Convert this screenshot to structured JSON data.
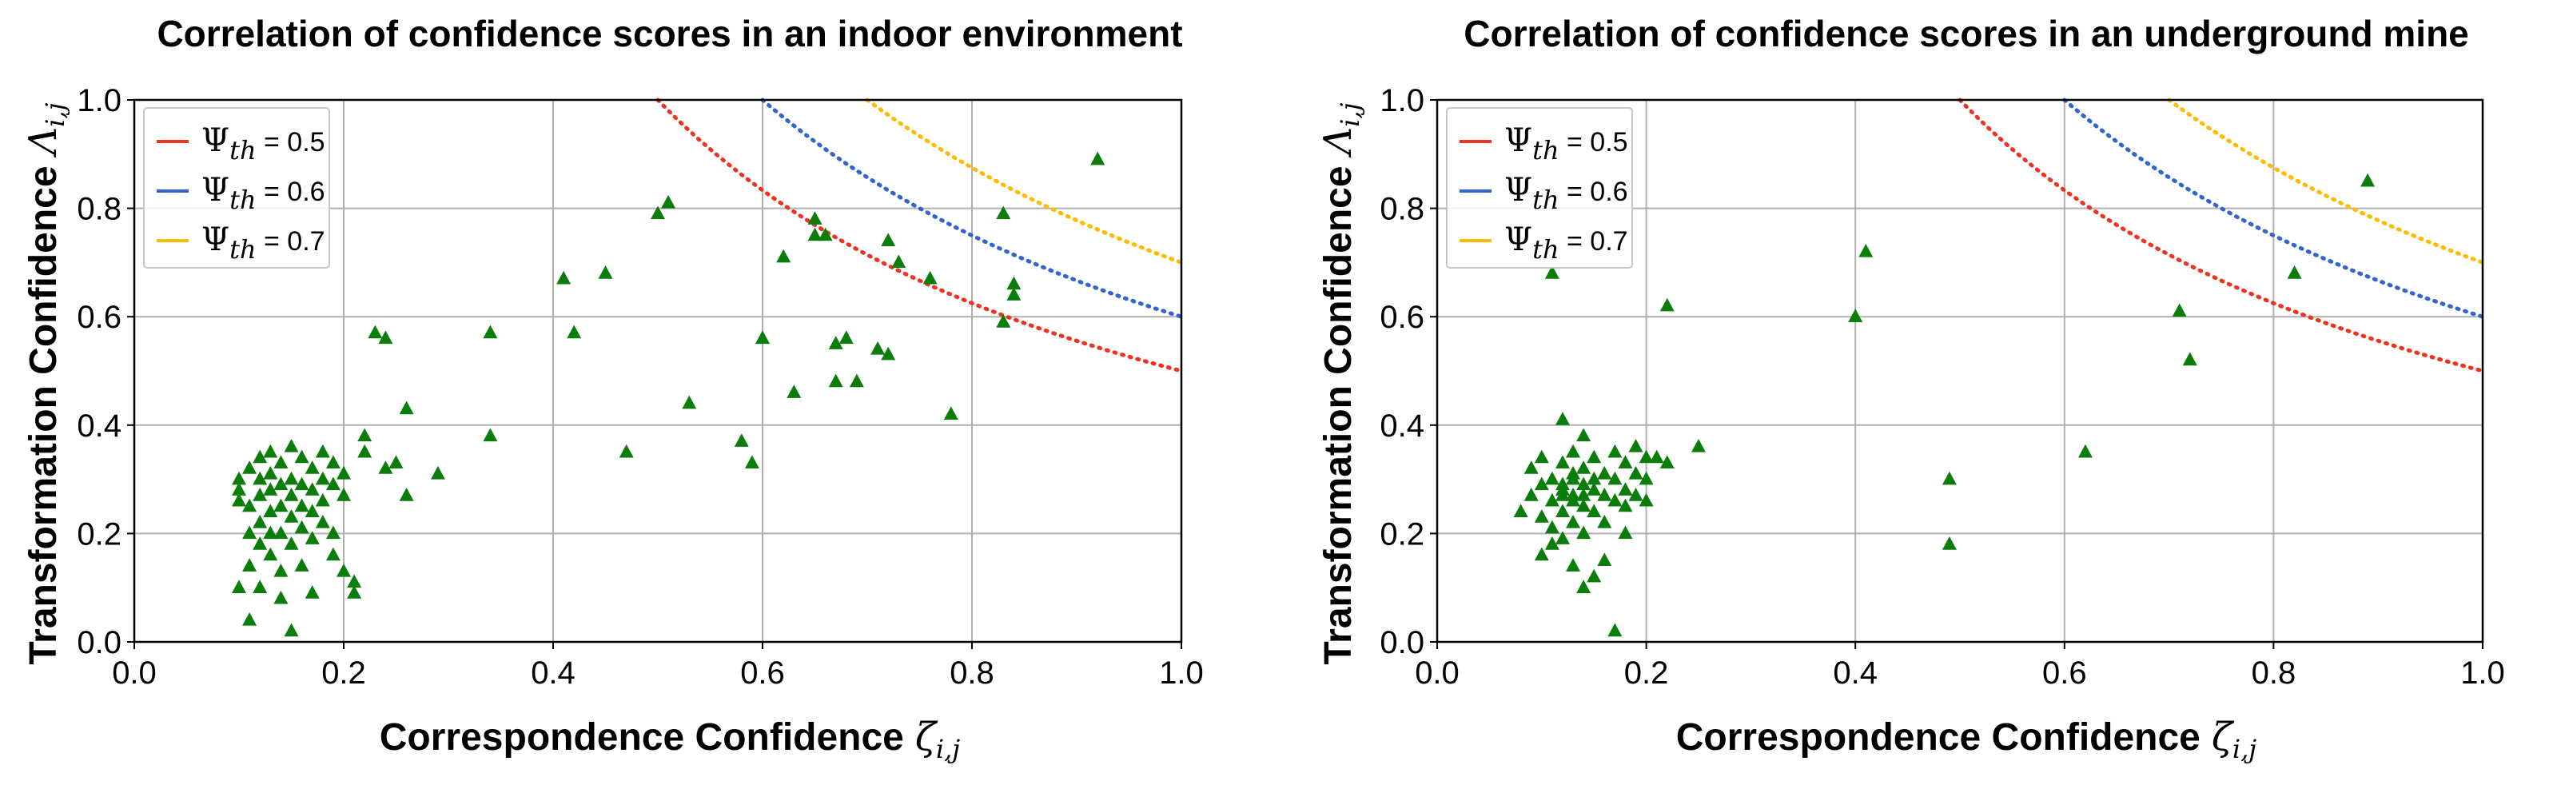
{
  "chart_data": [
    {
      "type": "scatter",
      "title": "Correlation of confidence scores in an indoor environment",
      "xlabel": "Correspondence  Confidence",
      "xlabel_symbol": "ζ",
      "xlabel_sub": "i,j",
      "ylabel": "Transformation Confidence",
      "ylabel_symbol": "Λ",
      "ylabel_sub": "i,j",
      "xlim": [
        0.0,
        1.0
      ],
      "ylim": [
        0.0,
        1.0
      ],
      "xticks": [
        "0.0",
        "0.2",
        "0.4",
        "0.6",
        "0.8",
        "1.0"
      ],
      "yticks": [
        "0.0",
        "0.2",
        "0.4",
        "0.6",
        "0.8",
        "1.0"
      ],
      "grid": true,
      "legend_position": "top-left",
      "legend": [
        {
          "symbol": "Ψ",
          "sub": "th",
          "value": " = 0.5",
          "threshold": 0.5,
          "color": "#ee3322"
        },
        {
          "symbol": "Ψ",
          "sub": "th",
          "value": " = 0.6",
          "threshold": 0.6,
          "color": "#3366cc"
        },
        {
          "symbol": "Ψ",
          "sub": "th",
          "value": " = 0.7",
          "threshold": 0.7,
          "color": "#ffbb00"
        }
      ],
      "marker_color": "#0a7d0a",
      "points": [
        [
          0.1,
          0.26
        ],
        [
          0.1,
          0.3
        ],
        [
          0.1,
          0.28
        ],
        [
          0.11,
          0.32
        ],
        [
          0.11,
          0.25
        ],
        [
          0.11,
          0.2
        ],
        [
          0.12,
          0.34
        ],
        [
          0.12,
          0.3
        ],
        [
          0.12,
          0.27
        ],
        [
          0.12,
          0.22
        ],
        [
          0.12,
          0.18
        ],
        [
          0.13,
          0.35
        ],
        [
          0.13,
          0.31
        ],
        [
          0.13,
          0.28
        ],
        [
          0.13,
          0.24
        ],
        [
          0.13,
          0.16
        ],
        [
          0.14,
          0.33
        ],
        [
          0.14,
          0.29
        ],
        [
          0.14,
          0.25
        ],
        [
          0.14,
          0.2
        ],
        [
          0.14,
          0.13
        ],
        [
          0.15,
          0.36
        ],
        [
          0.15,
          0.3
        ],
        [
          0.15,
          0.27
        ],
        [
          0.15,
          0.23
        ],
        [
          0.15,
          0.18
        ],
        [
          0.16,
          0.34
        ],
        [
          0.16,
          0.29
        ],
        [
          0.16,
          0.25
        ],
        [
          0.16,
          0.21
        ],
        [
          0.17,
          0.32
        ],
        [
          0.17,
          0.28
        ],
        [
          0.17,
          0.24
        ],
        [
          0.17,
          0.19
        ],
        [
          0.18,
          0.35
        ],
        [
          0.18,
          0.3
        ],
        [
          0.18,
          0.26
        ],
        [
          0.18,
          0.22
        ],
        [
          0.19,
          0.33
        ],
        [
          0.19,
          0.29
        ],
        [
          0.19,
          0.2
        ],
        [
          0.2,
          0.31
        ],
        [
          0.2,
          0.27
        ],
        [
          0.11,
          0.14
        ],
        [
          0.12,
          0.1
        ],
        [
          0.14,
          0.08
        ],
        [
          0.1,
          0.1
        ],
        [
          0.11,
          0.04
        ],
        [
          0.15,
          0.02
        ],
        [
          0.13,
          0.2
        ],
        [
          0.16,
          0.14
        ],
        [
          0.17,
          0.09
        ],
        [
          0.19,
          0.16
        ],
        [
          0.2,
          0.13
        ],
        [
          0.21,
          0.11
        ],
        [
          0.21,
          0.09
        ],
        [
          0.22,
          0.38
        ],
        [
          0.22,
          0.35
        ],
        [
          0.23,
          0.57
        ],
        [
          0.24,
          0.56
        ],
        [
          0.24,
          0.32
        ],
        [
          0.25,
          0.33
        ],
        [
          0.26,
          0.43
        ],
        [
          0.26,
          0.27
        ],
        [
          0.29,
          0.31
        ],
        [
          0.34,
          0.57
        ],
        [
          0.34,
          0.38
        ],
        [
          0.41,
          0.67
        ],
        [
          0.42,
          0.57
        ],
        [
          0.45,
          0.68
        ],
        [
          0.47,
          0.35
        ],
        [
          0.5,
          0.79
        ],
        [
          0.51,
          0.81
        ],
        [
          0.53,
          0.44
        ],
        [
          0.58,
          0.37
        ],
        [
          0.59,
          0.33
        ],
        [
          0.6,
          0.56
        ],
        [
          0.6,
          0.56
        ],
        [
          0.62,
          0.71
        ],
        [
          0.63,
          0.46
        ],
        [
          0.65,
          0.78
        ],
        [
          0.65,
          0.75
        ],
        [
          0.66,
          0.75
        ],
        [
          0.67,
          0.55
        ],
        [
          0.67,
          0.48
        ],
        [
          0.68,
          0.56
        ],
        [
          0.69,
          0.48
        ],
        [
          0.71,
          0.54
        ],
        [
          0.72,
          0.53
        ],
        [
          0.72,
          0.74
        ],
        [
          0.73,
          0.7
        ],
        [
          0.76,
          0.67
        ],
        [
          0.78,
          0.42
        ],
        [
          0.83,
          0.79
        ],
        [
          0.83,
          0.59
        ],
        [
          0.84,
          0.66
        ],
        [
          0.84,
          0.64
        ],
        [
          0.92,
          0.89
        ]
      ]
    },
    {
      "type": "scatter",
      "title": "Correlation of confidence scores in an underground mine",
      "xlabel": "Correspondence  Confidence",
      "xlabel_symbol": "ζ",
      "xlabel_sub": "i,j",
      "ylabel": "Transformation Confidence",
      "ylabel_symbol": "Λ",
      "ylabel_sub": "i,j",
      "xlim": [
        0.0,
        1.0
      ],
      "ylim": [
        0.0,
        1.0
      ],
      "xticks": [
        "0.0",
        "0.2",
        "0.4",
        "0.6",
        "0.8",
        "1.0"
      ],
      "yticks": [
        "0.0",
        "0.2",
        "0.4",
        "0.6",
        "0.8",
        "1.0"
      ],
      "grid": true,
      "legend_position": "top-left",
      "legend": [
        {
          "symbol": "Ψ",
          "sub": "th",
          "value": " = 0.5",
          "threshold": 0.5,
          "color": "#ee3322"
        },
        {
          "symbol": "Ψ",
          "sub": "th",
          "value": " = 0.6",
          "threshold": 0.6,
          "color": "#3366cc"
        },
        {
          "symbol": "Ψ",
          "sub": "th",
          "value": " = 0.7",
          "threshold": 0.7,
          "color": "#ffbb00"
        }
      ],
      "marker_color": "#0a7d0a",
      "points": [
        [
          0.08,
          0.24
        ],
        [
          0.09,
          0.27
        ],
        [
          0.09,
          0.32
        ],
        [
          0.1,
          0.29
        ],
        [
          0.1,
          0.23
        ],
        [
          0.1,
          0.34
        ],
        [
          0.11,
          0.3
        ],
        [
          0.11,
          0.26
        ],
        [
          0.11,
          0.21
        ],
        [
          0.12,
          0.33
        ],
        [
          0.12,
          0.28
        ],
        [
          0.12,
          0.24
        ],
        [
          0.12,
          0.19
        ],
        [
          0.13,
          0.35
        ],
        [
          0.13,
          0.3
        ],
        [
          0.13,
          0.27
        ],
        [
          0.13,
          0.22
        ],
        [
          0.14,
          0.32
        ],
        [
          0.14,
          0.29
        ],
        [
          0.14,
          0.25
        ],
        [
          0.14,
          0.2
        ],
        [
          0.15,
          0.34
        ],
        [
          0.15,
          0.28
        ],
        [
          0.15,
          0.24
        ],
        [
          0.16,
          0.31
        ],
        [
          0.16,
          0.27
        ],
        [
          0.16,
          0.22
        ],
        [
          0.17,
          0.35
        ],
        [
          0.17,
          0.3
        ],
        [
          0.17,
          0.26
        ],
        [
          0.18,
          0.33
        ],
        [
          0.18,
          0.28
        ],
        [
          0.18,
          0.25
        ],
        [
          0.19,
          0.36
        ],
        [
          0.19,
          0.31
        ],
        [
          0.19,
          0.27
        ],
        [
          0.2,
          0.34
        ],
        [
          0.2,
          0.3
        ],
        [
          0.2,
          0.26
        ],
        [
          0.12,
          0.29
        ],
        [
          0.13,
          0.31
        ],
        [
          0.14,
          0.27
        ],
        [
          0.15,
          0.3
        ],
        [
          0.13,
          0.26
        ],
        [
          0.12,
          0.27
        ],
        [
          0.1,
          0.16
        ],
        [
          0.11,
          0.18
        ],
        [
          0.12,
          0.41
        ],
        [
          0.14,
          0.38
        ],
        [
          0.13,
          0.14
        ],
        [
          0.14,
          0.1
        ],
        [
          0.15,
          0.12
        ],
        [
          0.16,
          0.15
        ],
        [
          0.17,
          0.02
        ],
        [
          0.18,
          0.2
        ],
        [
          0.11,
          0.68
        ],
        [
          0.21,
          0.34
        ],
        [
          0.22,
          0.33
        ],
        [
          0.22,
          0.62
        ],
        [
          0.25,
          0.36
        ],
        [
          0.4,
          0.6
        ],
        [
          0.41,
          0.72
        ],
        [
          0.49,
          0.3
        ],
        [
          0.49,
          0.18
        ],
        [
          0.62,
          0.35
        ],
        [
          0.71,
          0.61
        ],
        [
          0.72,
          0.52
        ],
        [
          0.82,
          0.68
        ],
        [
          0.89,
          0.85
        ]
      ]
    }
  ]
}
